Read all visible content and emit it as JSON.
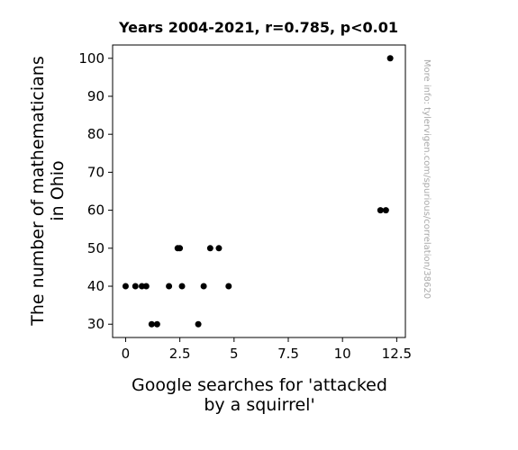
{
  "chart_data": {
    "type": "scatter",
    "title": "Years 2004-2021, r=0.785, p<0.01",
    "xlabel_lines": [
      "Google searches for 'attacked",
      "by a squirrel'"
    ],
    "ylabel_lines": [
      "The number of mathematicians",
      "in Ohio"
    ],
    "xlim": [
      -0.6,
      12.9
    ],
    "ylim": [
      26.5,
      103.5
    ],
    "xticks": [
      0,
      2.5,
      5,
      7.5,
      10,
      12.5
    ],
    "xtick_labels": [
      "0",
      "2.5",
      "5",
      "7.5",
      "10",
      "12.5"
    ],
    "yticks": [
      30,
      40,
      50,
      60,
      70,
      80,
      90,
      100
    ],
    "ytick_labels": [
      "30",
      "40",
      "50",
      "60",
      "70",
      "80",
      "90",
      "100"
    ],
    "grid": false,
    "marker_color": "#000000",
    "points": [
      {
        "x": 0.0,
        "y": 40
      },
      {
        "x": 0.45,
        "y": 40
      },
      {
        "x": 0.75,
        "y": 40
      },
      {
        "x": 0.95,
        "y": 40
      },
      {
        "x": 1.2,
        "y": 30
      },
      {
        "x": 1.45,
        "y": 30
      },
      {
        "x": 2.0,
        "y": 40
      },
      {
        "x": 2.4,
        "y": 50
      },
      {
        "x": 2.5,
        "y": 50
      },
      {
        "x": 2.6,
        "y": 40
      },
      {
        "x": 3.35,
        "y": 30
      },
      {
        "x": 3.6,
        "y": 40
      },
      {
        "x": 3.9,
        "y": 50
      },
      {
        "x": 4.3,
        "y": 50
      },
      {
        "x": 4.75,
        "y": 40
      },
      {
        "x": 11.75,
        "y": 60
      },
      {
        "x": 12.0,
        "y": 60
      },
      {
        "x": 12.2,
        "y": 100
      }
    ]
  },
  "watermark": "More info: tylervigen.com/spurious/correlation/38620"
}
